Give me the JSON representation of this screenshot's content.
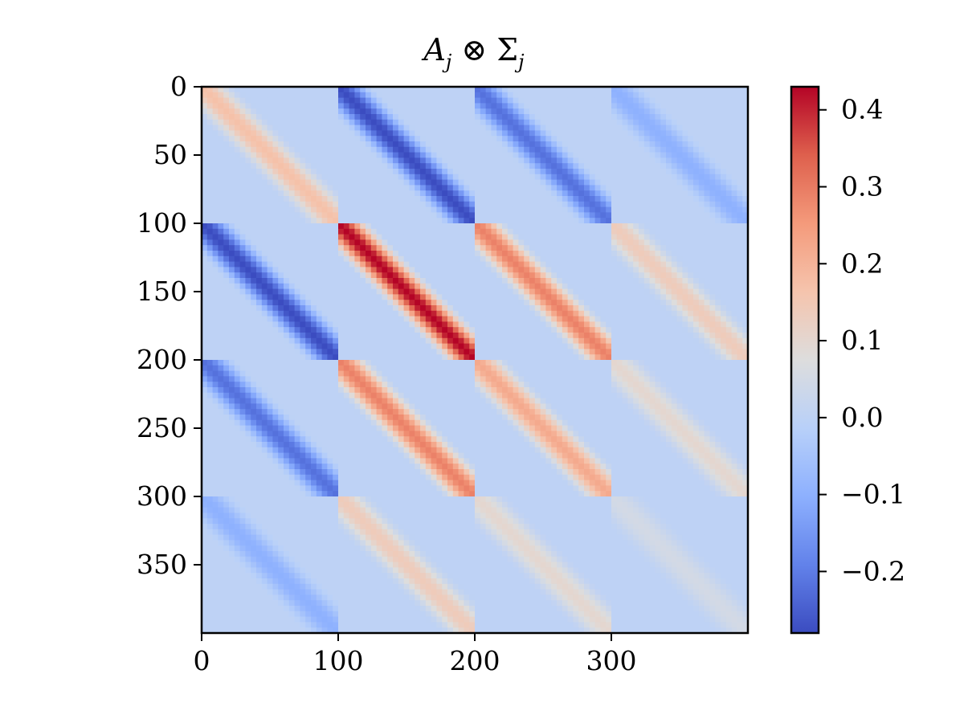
{
  "chart_data": {
    "type": "heatmap",
    "title": "A_j ⊗ Σ_j",
    "title_parts": {
      "a": "A",
      "a_sub": "j",
      "op": "⊗",
      "sigma": "Σ",
      "sigma_sub": "j"
    },
    "xlabel": "",
    "ylabel": "",
    "matrix_size": 400,
    "block_size": 100,
    "xlim": [
      0,
      400
    ],
    "ylim": [
      400,
      0
    ],
    "x_ticks": [
      0,
      100,
      200,
      300
    ],
    "y_ticks": [
      0,
      50,
      100,
      150,
      200,
      250,
      300,
      350
    ],
    "colormap": "coolwarm",
    "vmin": -0.28,
    "vmax": 0.43,
    "colorbar_ticks": [
      {
        "value": 0.4,
        "label": "0.4"
      },
      {
        "value": 0.3,
        "label": "0.3"
      },
      {
        "value": 0.2,
        "label": "0.2"
      },
      {
        "value": 0.1,
        "label": "0.1"
      },
      {
        "value": 0.0,
        "label": "0.0"
      },
      {
        "value": -0.1,
        "label": "−0.1"
      },
      {
        "value": -0.2,
        "label": "−0.2"
      }
    ],
    "block_peak_values": [
      [
        0.17,
        -0.28,
        -0.22,
        -0.1
      ],
      [
        -0.28,
        0.43,
        0.29,
        0.14
      ],
      [
        -0.22,
        0.29,
        0.22,
        0.1
      ],
      [
        -0.1,
        0.14,
        0.1,
        0.05
      ]
    ],
    "block_off_diagonal_value": 0.0,
    "diagonal_band_halfwidth": 25,
    "grid": false,
    "colorbar_position": "right"
  }
}
